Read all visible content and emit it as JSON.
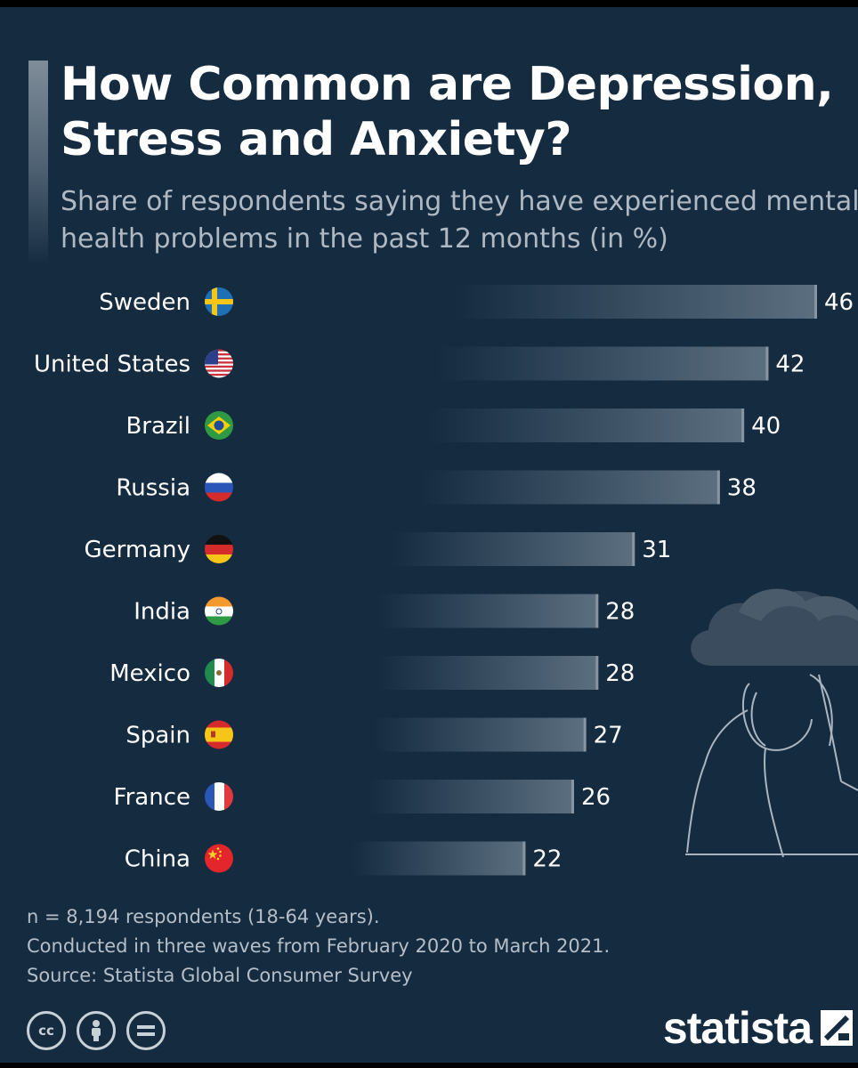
{
  "title": "How Common are Depression, Stress and Anxiety?",
  "title_lines": [
    "How Common are Depression,",
    "Stress and Anxiety?"
  ],
  "subtitle_lines": [
    "Share of respondents saying they have experienced mental",
    "health problems in the past 12 months (in %)"
  ],
  "chart_data": {
    "type": "bar",
    "orientation": "horizontal",
    "title": "How Common are Depression, Stress and Anxiety?",
    "xlabel": "",
    "ylabel": "",
    "unit": "%",
    "xlim": [
      0,
      46
    ],
    "categories": [
      "Sweden",
      "United States",
      "Brazil",
      "Russia",
      "Germany",
      "India",
      "Mexico",
      "Spain",
      "France",
      "China"
    ],
    "values": [
      46,
      42,
      40,
      38,
      31,
      28,
      28,
      27,
      26,
      22
    ],
    "flag_icons": [
      "sweden-flag-icon",
      "united-states-flag-icon",
      "brazil-flag-icon",
      "russia-flag-icon",
      "germany-flag-icon",
      "india-flag-icon",
      "mexico-flag-icon",
      "spain-flag-icon",
      "france-flag-icon",
      "china-flag-icon"
    ],
    "bar_color_start": "#152b40",
    "bar_color_end": "#5b6f80",
    "grid": false,
    "legend": "none"
  },
  "footnotes": [
    "n = 8,194 respondents (18-64 years).",
    "Conducted in three waves from February 2020 to March 2021.",
    "Source: Statista Global Consumer Survey"
  ],
  "license_icons": [
    "cc-icon",
    "attribution-icon",
    "no-derivatives-icon"
  ],
  "brand": {
    "name": "statista",
    "logo_icon": "statista-logo-icon"
  },
  "colors": {
    "background": "#152b40",
    "text": "#ffffff",
    "subtitle": "#aeb9c4",
    "footnote": "#b4bfc9"
  }
}
